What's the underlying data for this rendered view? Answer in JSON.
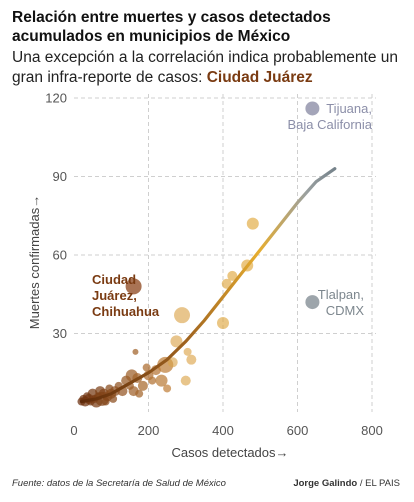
{
  "header": {
    "title": "Relación entre muertes y casos detectados acumulados en municipios de México",
    "subtitle_prefix": "Una excepción a la correlación indica probablemente un gran infra-reporte de casos: ",
    "subtitle_highlight": "Ciudad Juárez"
  },
  "footer": {
    "source": "Fuente: datos de la Secretaría de Salud de México",
    "credit_author": "Jorge Galindo",
    "credit_sep": " / ",
    "credit_outlet": "EL PAIS"
  },
  "chart_data": {
    "type": "scatter",
    "xlabel": "Casos detectados→",
    "ylabel": "Muertes confirmadas→",
    "xlim": [
      0,
      800
    ],
    "ylim": [
      0,
      120
    ],
    "xticks": [
      0,
      200,
      400,
      600,
      800
    ],
    "yticks": [
      30,
      60,
      90,
      120
    ],
    "grid": true,
    "colors": {
      "low": "#6b2e0c",
      "mid": "#e0a32e",
      "high": "#4a5f72",
      "juarez": "#9a5a36",
      "tijuana": "#8d8fa8",
      "tlalpan": "#8c959c",
      "grid": "#cfcfcf",
      "axis_text": "#555555"
    },
    "points": [
      {
        "x": 20,
        "y": 4,
        "s": 4
      },
      {
        "x": 25,
        "y": 5,
        "s": 4
      },
      {
        "x": 30,
        "y": 4,
        "s": 5
      },
      {
        "x": 35,
        "y": 6,
        "s": 4
      },
      {
        "x": 40,
        "y": 5,
        "s": 5
      },
      {
        "x": 45,
        "y": 4,
        "s": 4
      },
      {
        "x": 50,
        "y": 7,
        "s": 5
      },
      {
        "x": 55,
        "y": 5,
        "s": 4
      },
      {
        "x": 60,
        "y": 4,
        "s": 6
      },
      {
        "x": 65,
        "y": 6,
        "s": 4
      },
      {
        "x": 70,
        "y": 8,
        "s": 5
      },
      {
        "x": 75,
        "y": 5,
        "s": 7
      },
      {
        "x": 80,
        "y": 7,
        "s": 5
      },
      {
        "x": 85,
        "y": 4,
        "s": 4
      },
      {
        "x": 90,
        "y": 6,
        "s": 5
      },
      {
        "x": 95,
        "y": 9,
        "s": 4
      },
      {
        "x": 100,
        "y": 7,
        "s": 5
      },
      {
        "x": 105,
        "y": 5,
        "s": 4
      },
      {
        "x": 110,
        "y": 8,
        "s": 5
      },
      {
        "x": 120,
        "y": 10,
        "s": 4
      },
      {
        "x": 130,
        "y": 8,
        "s": 5
      },
      {
        "x": 140,
        "y": 12,
        "s": 5
      },
      {
        "x": 150,
        "y": 10,
        "s": 4
      },
      {
        "x": 155,
        "y": 14,
        "s": 6
      },
      {
        "x": 160,
        "y": 8,
        "s": 5
      },
      {
        "x": 165,
        "y": 23,
        "s": 3
      },
      {
        "x": 170,
        "y": 13,
        "s": 5
      },
      {
        "x": 175,
        "y": 7,
        "s": 4
      },
      {
        "x": 185,
        "y": 10,
        "s": 5
      },
      {
        "x": 195,
        "y": 17,
        "s": 4
      },
      {
        "x": 200,
        "y": 14,
        "s": 5
      },
      {
        "x": 210,
        "y": 12,
        "s": 4
      },
      {
        "x": 220,
        "y": 16,
        "s": 5
      },
      {
        "x": 235,
        "y": 12,
        "s": 6
      },
      {
        "x": 245,
        "y": 18,
        "s": 8
      },
      {
        "x": 250,
        "y": 9,
        "s": 4
      },
      {
        "x": 265,
        "y": 19,
        "s": 5
      },
      {
        "x": 275,
        "y": 27,
        "s": 6
      },
      {
        "x": 290,
        "y": 37,
        "s": 8
      },
      {
        "x": 300,
        "y": 12,
        "s": 5
      },
      {
        "x": 305,
        "y": 23,
        "s": 4
      },
      {
        "x": 315,
        "y": 20,
        "s": 5
      },
      {
        "x": 400,
        "y": 34,
        "s": 6
      },
      {
        "x": 410,
        "y": 49,
        "s": 5
      },
      {
        "x": 425,
        "y": 52,
        "s": 5
      },
      {
        "x": 465,
        "y": 56,
        "s": 6
      },
      {
        "x": 480,
        "y": 72,
        "s": 6
      },
      {
        "x": 160,
        "y": 48,
        "s": 8,
        "id": "juarez"
      },
      {
        "x": 640,
        "y": 42,
        "s": 7,
        "id": "tlalpan"
      },
      {
        "x": 640,
        "y": 116,
        "s": 7,
        "id": "tijuana"
      }
    ],
    "trend": [
      [
        20,
        4
      ],
      [
        60,
        5
      ],
      [
        100,
        7
      ],
      [
        150,
        11
      ],
      [
        200,
        15
      ],
      [
        250,
        20
      ],
      [
        300,
        27
      ],
      [
        350,
        35
      ],
      [
        400,
        44
      ],
      [
        450,
        53
      ],
      [
        500,
        62
      ],
      [
        550,
        71
      ],
      [
        600,
        80
      ],
      [
        650,
        88
      ],
      [
        700,
        93
      ]
    ],
    "annotations": {
      "juarez": [
        "Ciudad",
        "Juárez,",
        "Chihuahua"
      ],
      "tijuana": [
        "Tijuana,",
        "Baja California"
      ],
      "tlalpan": [
        "Tlalpan,",
        "CDMX"
      ]
    }
  }
}
